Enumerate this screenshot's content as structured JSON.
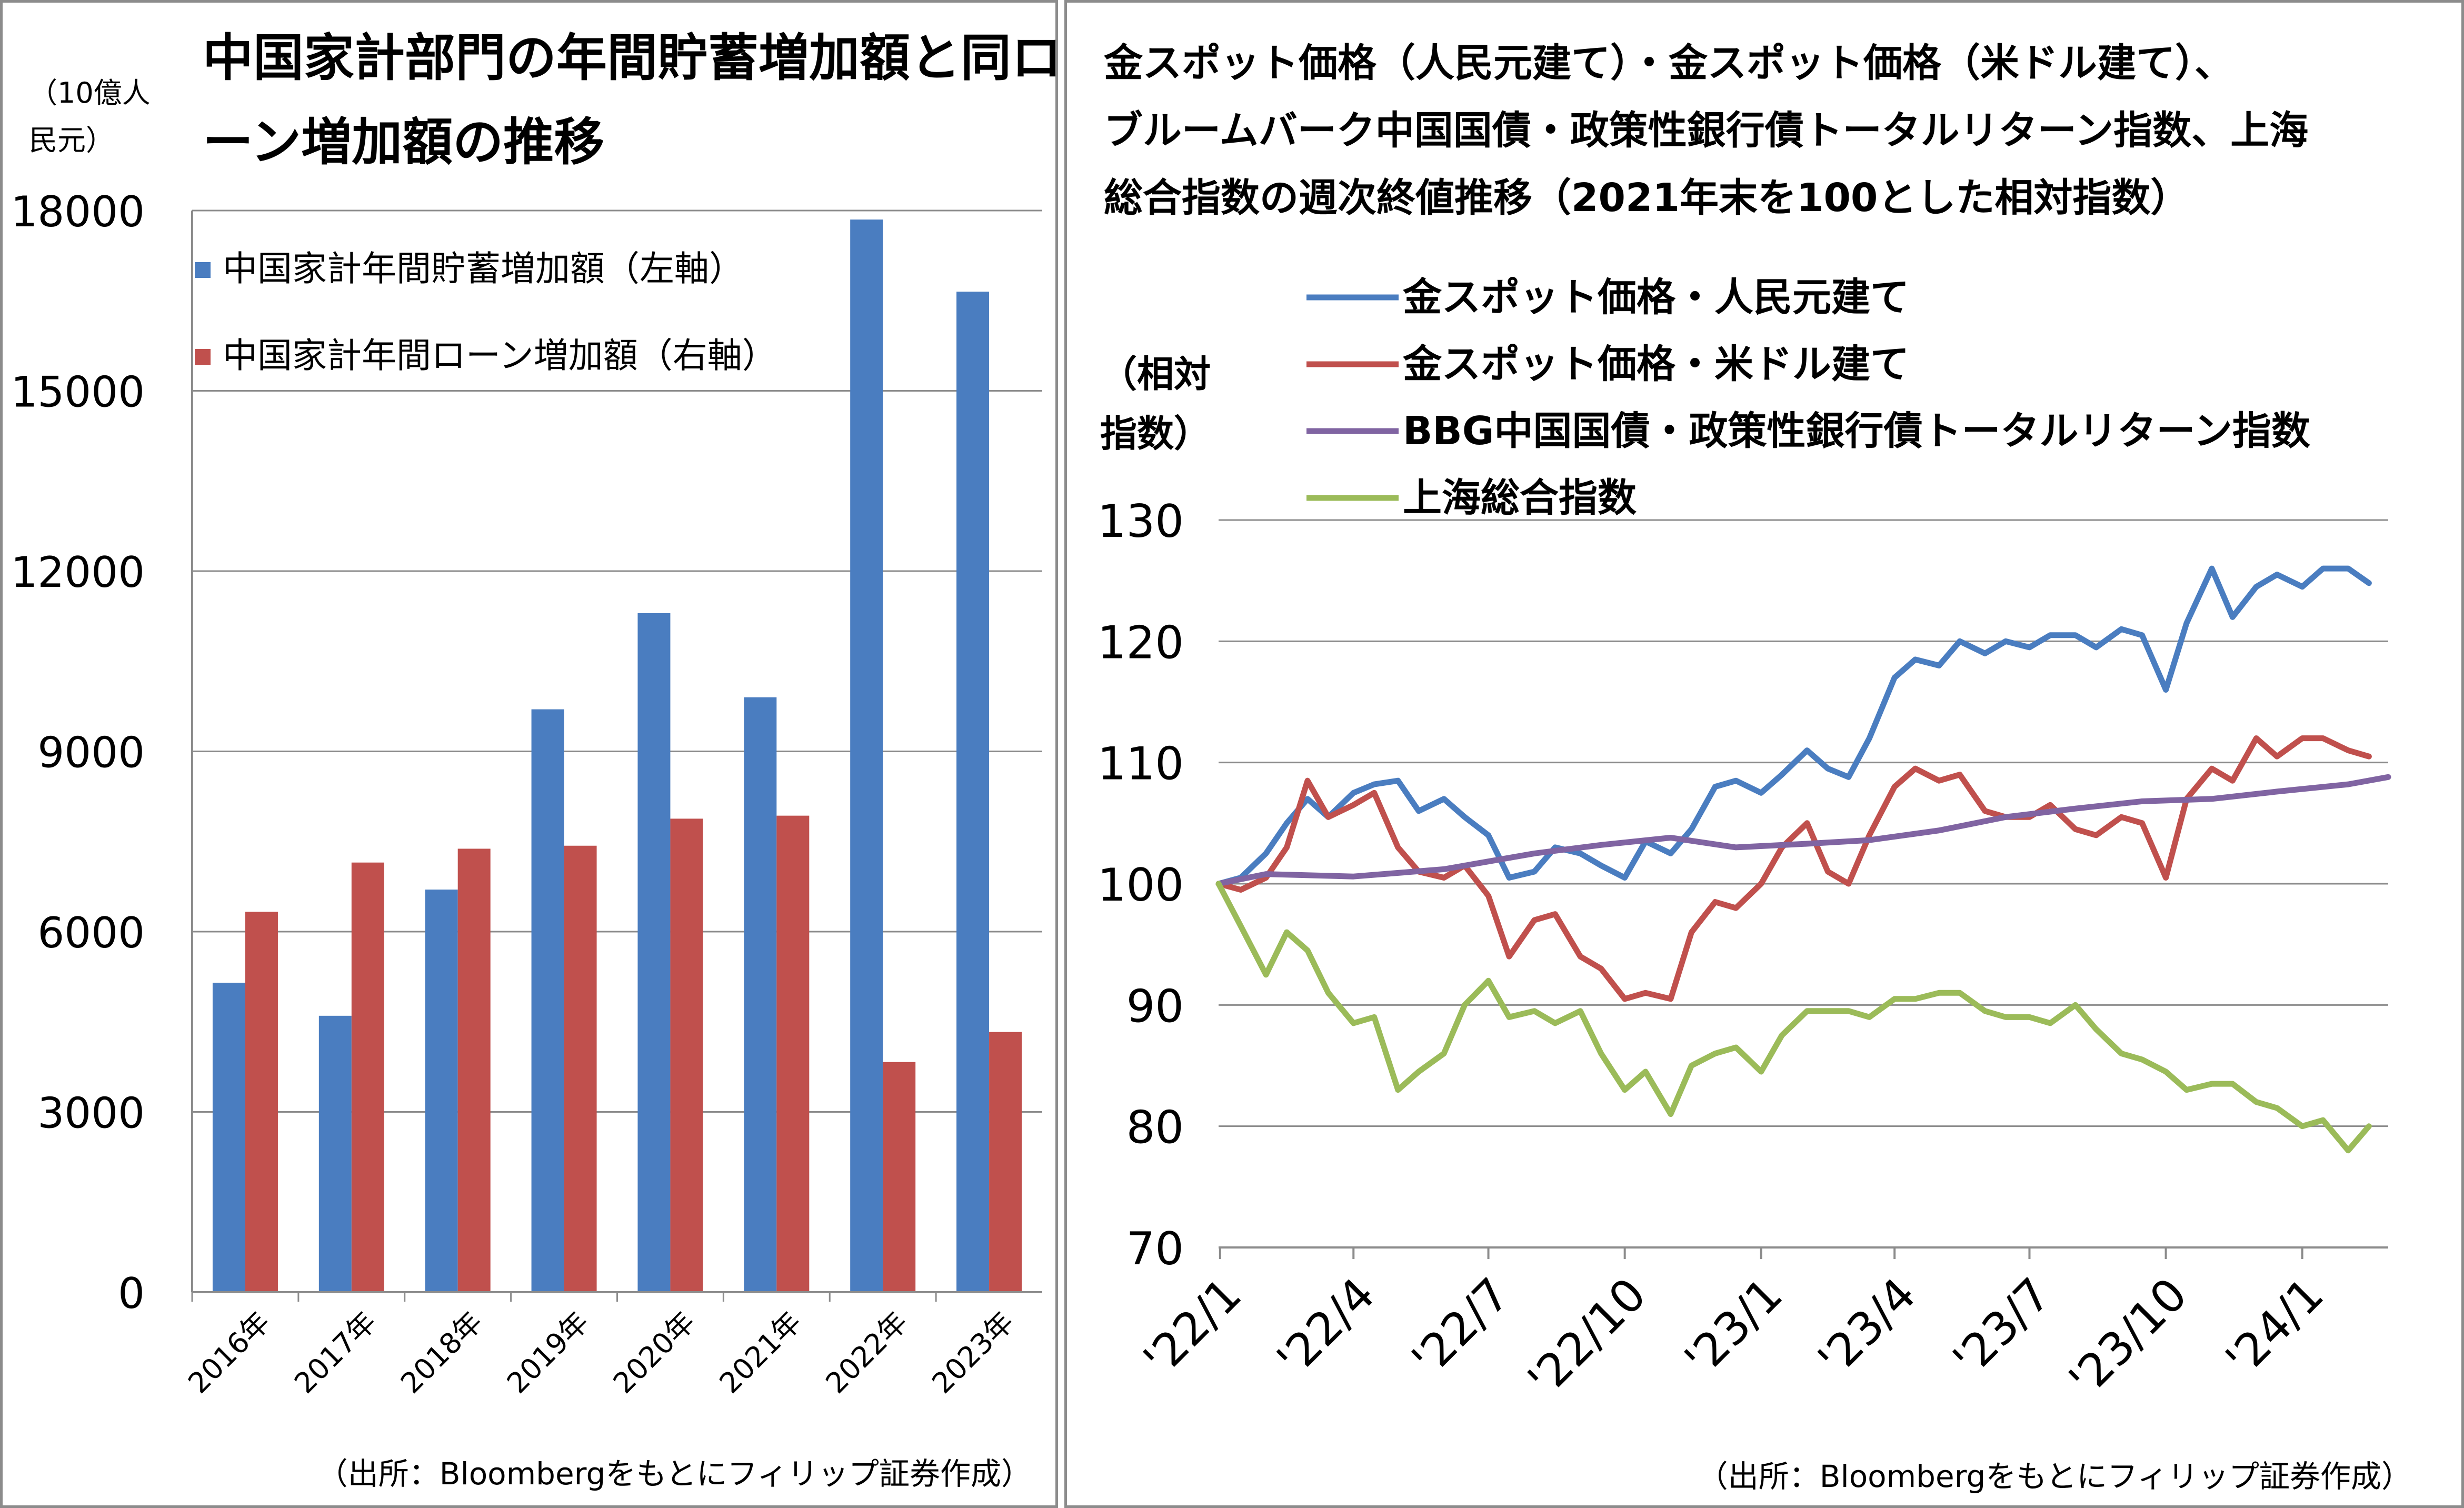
{
  "chart_data": [
    {
      "type": "bar",
      "title": "中国家計部門の年間貯蓄増加額と同ローン増加額の推移",
      "ylabel": "（10億人民元）",
      "source": "（出所：Bloombergをもとにフィリップ証券作成）",
      "ylim": [
        0,
        18000
      ],
      "yticks": [
        "0",
        "3000",
        "6000",
        "9000",
        "12000",
        "15000",
        "18000"
      ],
      "categories": [
        "2016年",
        "2017年",
        "2018年",
        "2019年",
        "2020年",
        "2021年",
        "2022年",
        "2023年"
      ],
      "legend_position": "top-left",
      "grid": true,
      "series": [
        {
          "name": "中国家計年間貯蓄増加額（左軸）",
          "color": "#4a7dc0",
          "values": [
            5150,
            4600,
            6700,
            9700,
            11300,
            9900,
            17850,
            16650
          ]
        },
        {
          "name": "中国家計年間ローン増加額（右軸）",
          "color": "#c0504d",
          "values": [
            6330,
            7150,
            7380,
            7430,
            7880,
            7930,
            3830,
            4330
          ]
        }
      ]
    },
    {
      "type": "line",
      "title": "金スポット価格（人民元建て）・金スポット価格（米ドル建て）、ブルームバーク中国国債・政策性銀行債トータルリターン指数、上海総合指数の週次終値推移（2021年末を100とした相対指数）",
      "title_lines": [
        "金スポット価格（人民元建て）・金スポット価格（米ドル建て）、",
        "ブルームバーク中国国債・政策性銀行債トータルリターン指数、上海",
        "総合指数の週次終値推移（2021年末を100とした相対指数）"
      ],
      "ylabel_lines": [
        "（相対",
        "指数）"
      ],
      "source": "（出所：Bloombergをもとにフィリップ証券作成）",
      "ylim": [
        70,
        130
      ],
      "yticks": [
        "70",
        "80",
        "90",
        "100",
        "110",
        "120",
        "130"
      ],
      "xlim": [
        "2021-12-31",
        "2024-02-28"
      ],
      "xticks": [
        {
          "date": "2022-01-01",
          "label": "'22/1"
        },
        {
          "date": "2022-04-01",
          "label": "'22/4"
        },
        {
          "date": "2022-07-01",
          "label": "'22/7"
        },
        {
          "date": "2022-10-01",
          "label": "'22/10"
        },
        {
          "date": "2023-01-01",
          "label": "'23/1"
        },
        {
          "date": "2023-04-01",
          "label": "'23/4"
        },
        {
          "date": "2023-07-01",
          "label": "'23/7"
        },
        {
          "date": "2023-10-01",
          "label": "'23/10"
        },
        {
          "date": "2024-01-01",
          "label": "'24/1"
        }
      ],
      "legend_position": "top-left",
      "grid": true,
      "series": [
        {
          "name": "金スポット価格・人民元建て",
          "color": "#4a7dc0",
          "points": [
            [
              "2021-12-31",
              100
            ],
            [
              "2022-01-15",
              100.5
            ],
            [
              "2022-02-01",
              102.5
            ],
            [
              "2022-02-15",
              105
            ],
            [
              "2022-03-01",
              107
            ],
            [
              "2022-03-15",
              105.5
            ],
            [
              "2022-04-01",
              107.5
            ],
            [
              "2022-04-15",
              108.2
            ],
            [
              "2022-05-01",
              108.5
            ],
            [
              "2022-05-15",
              106
            ],
            [
              "2022-06-01",
              107
            ],
            [
              "2022-06-15",
              105.5
            ],
            [
              "2022-07-01",
              104
            ],
            [
              "2022-07-15",
              100.5
            ],
            [
              "2022-08-01",
              101
            ],
            [
              "2022-08-15",
              103
            ],
            [
              "2022-09-01",
              102.5
            ],
            [
              "2022-09-15",
              101.5
            ],
            [
              "2022-10-01",
              100.5
            ],
            [
              "2022-10-15",
              103.5
            ],
            [
              "2022-11-01",
              102.5
            ],
            [
              "2022-11-15",
              104.5
            ],
            [
              "2022-12-01",
              108
            ],
            [
              "2022-12-15",
              108.5
            ],
            [
              "2023-01-01",
              107.5
            ],
            [
              "2023-01-15",
              109
            ],
            [
              "2023-02-01",
              111
            ],
            [
              "2023-02-15",
              109.5
            ],
            [
              "2023-03-01",
              108.8
            ],
            [
              "2023-03-15",
              112
            ],
            [
              "2023-04-01",
              117
            ],
            [
              "2023-04-15",
              118.5
            ],
            [
              "2023-05-01",
              118
            ],
            [
              "2023-05-15",
              120
            ],
            [
              "2023-06-01",
              119
            ],
            [
              "2023-06-15",
              120
            ],
            [
              "2023-07-01",
              119.5
            ],
            [
              "2023-07-15",
              120.5
            ],
            [
              "2023-08-01",
              120.5
            ],
            [
              "2023-08-15",
              119.5
            ],
            [
              "2023-09-01",
              121
            ],
            [
              "2023-09-15",
              120.5
            ],
            [
              "2023-10-01",
              116
            ],
            [
              "2023-10-15",
              121.5
            ],
            [
              "2023-11-01",
              126
            ],
            [
              "2023-11-15",
              122
            ],
            [
              "2023-12-01",
              124.5
            ],
            [
              "2023-12-15",
              125.5
            ],
            [
              "2024-01-01",
              124.5
            ],
            [
              "2024-01-15",
              126
            ],
            [
              "2024-02-01",
              126
            ],
            [
              "2024-02-15",
              124.8
            ]
          ]
        },
        {
          "name": "金スポット価格・米ドル建て",
          "color": "#c0504d",
          "points": [
            [
              "2021-12-31",
              100
            ],
            [
              "2022-01-15",
              99.5
            ],
            [
              "2022-02-01",
              100.5
            ],
            [
              "2022-02-15",
              103
            ],
            [
              "2022-03-01",
              108.5
            ],
            [
              "2022-03-15",
              105.5
            ],
            [
              "2022-04-01",
              106.5
            ],
            [
              "2022-04-15",
              107.5
            ],
            [
              "2022-05-01",
              103
            ],
            [
              "2022-05-15",
              101
            ],
            [
              "2022-06-01",
              100.5
            ],
            [
              "2022-06-15",
              101.5
            ],
            [
              "2022-07-01",
              99
            ],
            [
              "2022-07-15",
              94
            ],
            [
              "2022-08-01",
              97
            ],
            [
              "2022-08-15",
              97.5
            ],
            [
              "2022-09-01",
              94
            ],
            [
              "2022-09-15",
              93
            ],
            [
              "2022-10-01",
              90.5
            ],
            [
              "2022-10-15",
              91
            ],
            [
              "2022-11-01",
              90.5
            ],
            [
              "2022-11-15",
              96
            ],
            [
              "2022-12-01",
              98.5
            ],
            [
              "2022-12-15",
              98
            ],
            [
              "2023-01-01",
              100
            ],
            [
              "2023-01-15",
              103
            ],
            [
              "2023-02-01",
              105
            ],
            [
              "2023-02-15",
              101
            ],
            [
              "2023-03-01",
              100
            ],
            [
              "2023-03-15",
              104
            ],
            [
              "2023-04-01",
              108
            ],
            [
              "2023-04-15",
              109.5
            ],
            [
              "2023-05-01",
              108.5
            ],
            [
              "2023-05-15",
              109
            ],
            [
              "2023-06-01",
              106
            ],
            [
              "2023-06-15",
              105.5
            ],
            [
              "2023-07-01",
              105.5
            ],
            [
              "2023-07-15",
              106.5
            ],
            [
              "2023-08-01",
              104.5
            ],
            [
              "2023-08-15",
              104
            ],
            [
              "2023-09-01",
              105.5
            ],
            [
              "2023-09-15",
              105
            ],
            [
              "2023-10-01",
              100.5
            ],
            [
              "2023-10-15",
              107
            ],
            [
              "2023-11-01",
              109.5
            ],
            [
              "2023-11-15",
              108.5
            ],
            [
              "2023-12-01",
              112
            ],
            [
              "2023-12-15",
              110.5
            ],
            [
              "2024-01-01",
              112
            ],
            [
              "2024-01-15",
              112
            ],
            [
              "2024-02-01",
              111
            ],
            [
              "2024-02-15",
              110.5
            ]
          ]
        },
        {
          "name": "BBG中国国債・政策性銀行債トータルリターン指数",
          "color": "#8064a2",
          "points": [
            [
              "2021-12-31",
              100
            ],
            [
              "2022-02-01",
              100.8
            ],
            [
              "2022-04-01",
              100.6
            ],
            [
              "2022-06-01",
              101.2
            ],
            [
              "2022-08-01",
              102.5
            ],
            [
              "2022-09-15",
              103.2
            ],
            [
              "2022-11-01",
              103.8
            ],
            [
              "2022-12-15",
              103
            ],
            [
              "2023-02-01",
              103.3
            ],
            [
              "2023-03-15",
              103.6
            ],
            [
              "2023-05-01",
              104.4
            ],
            [
              "2023-06-15",
              105.5
            ],
            [
              "2023-08-01",
              106.2
            ],
            [
              "2023-09-15",
              106.8
            ],
            [
              "2023-11-01",
              107
            ],
            [
              "2023-12-15",
              107.6
            ],
            [
              "2024-02-01",
              108.2
            ],
            [
              "2024-02-28",
              108.8
            ]
          ]
        },
        {
          "name": "上海総合指数",
          "color": "#9bbb59",
          "points": [
            [
              "2021-12-31",
              100
            ],
            [
              "2022-01-15",
              96.5
            ],
            [
              "2022-02-01",
              92.5
            ],
            [
              "2022-02-15",
              96
            ],
            [
              "2022-03-01",
              94.5
            ],
            [
              "2022-03-15",
              91
            ],
            [
              "2022-04-01",
              88.5
            ],
            [
              "2022-04-15",
              89
            ],
            [
              "2022-05-01",
              83
            ],
            [
              "2022-05-15",
              84.5
            ],
            [
              "2022-06-01",
              86
            ],
            [
              "2022-06-15",
              90
            ],
            [
              "2022-07-01",
              92
            ],
            [
              "2022-07-15",
              89
            ],
            [
              "2022-08-01",
              89.5
            ],
            [
              "2022-08-15",
              88.5
            ],
            [
              "2022-09-01",
              89.5
            ],
            [
              "2022-09-15",
              86
            ],
            [
              "2022-10-01",
              83
            ],
            [
              "2022-10-15",
              84.5
            ],
            [
              "2022-11-01",
              81
            ],
            [
              "2022-11-15",
              85
            ],
            [
              "2022-12-01",
              86
            ],
            [
              "2022-12-15",
              86.5
            ],
            [
              "2023-01-01",
              84.5
            ],
            [
              "2023-01-15",
              87.5
            ],
            [
              "2023-02-01",
              89.5
            ],
            [
              "2023-02-15",
              89.5
            ],
            [
              "2023-03-01",
              89.5
            ],
            [
              "2023-03-15",
              89
            ],
            [
              "2023-04-01",
              90.5
            ],
            [
              "2023-04-15",
              90.5
            ],
            [
              "2023-05-01",
              91
            ],
            [
              "2023-05-15",
              91
            ],
            [
              "2023-06-01",
              89.5
            ],
            [
              "2023-06-15",
              89
            ],
            [
              "2023-07-01",
              89
            ],
            [
              "2023-07-15",
              88.5
            ],
            [
              "2023-08-01",
              90
            ],
            [
              "2023-08-15",
              88
            ],
            [
              "2023-09-01",
              86
            ],
            [
              "2023-09-15",
              85.5
            ],
            [
              "2023-10-01",
              84.5
            ],
            [
              "2023-10-15",
              83
            ],
            [
              "2023-11-01",
              83.5
            ],
            [
              "2023-11-15",
              83.5
            ],
            [
              "2023-12-01",
              82
            ],
            [
              "2023-12-15",
              81.5
            ],
            [
              "2024-01-01",
              80
            ],
            [
              "2024-01-15",
              80.5
            ],
            [
              "2024-02-01",
              78
            ],
            [
              "2024-02-15",
              80
            ]
          ]
        }
      ]
    }
  ]
}
